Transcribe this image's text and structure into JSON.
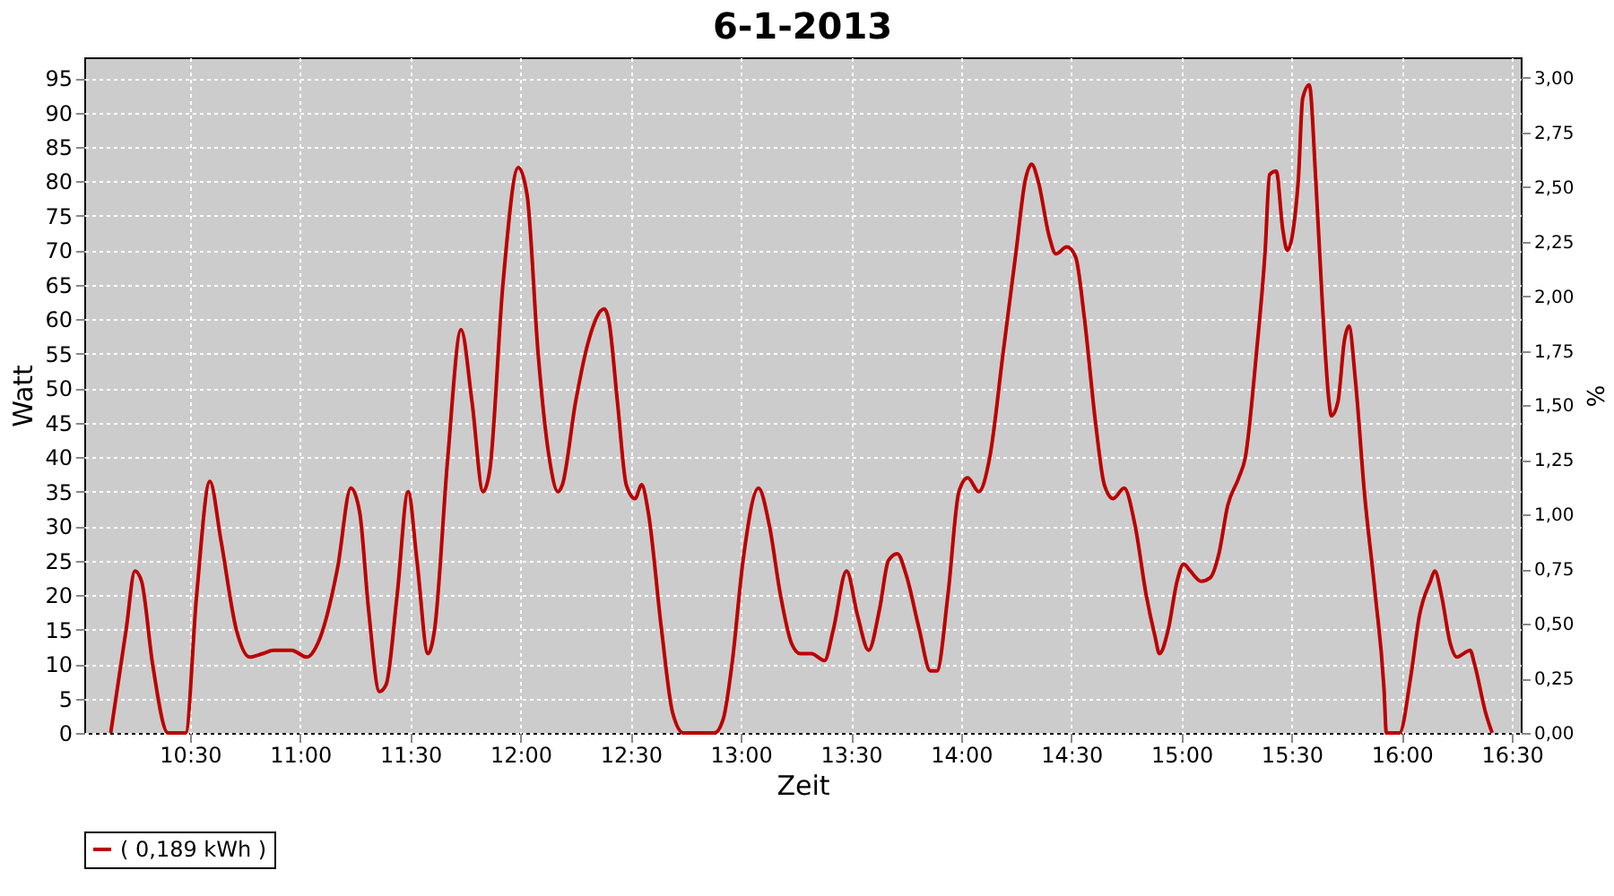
{
  "chart_data": {
    "type": "line",
    "title": "6-1-2013",
    "xlabel": "Zeit",
    "ylabel": "Watt",
    "y2label": "%",
    "xlim": [
      10.02,
      16.54
    ],
    "xticks": [
      {
        "value": 10.5,
        "label": "10:30"
      },
      {
        "value": 11,
        "label": "11:00"
      },
      {
        "value": 11.5,
        "label": "11:30"
      },
      {
        "value": 12,
        "label": "12:00"
      },
      {
        "value": 12.5,
        "label": "12:30"
      },
      {
        "value": 13,
        "label": "13:00"
      },
      {
        "value": 13.5,
        "label": "13:30"
      },
      {
        "value": 14,
        "label": "14:00"
      },
      {
        "value": 14.5,
        "label": "14:30"
      },
      {
        "value": 15,
        "label": "15:00"
      },
      {
        "value": 15.5,
        "label": "15:30"
      },
      {
        "value": 16,
        "label": "16:00"
      },
      {
        "value": 16.5,
        "label": "16:30"
      }
    ],
    "ylim": [
      0,
      98
    ],
    "yticks": [
      0,
      5,
      10,
      15,
      20,
      25,
      30,
      35,
      40,
      45,
      50,
      55,
      60,
      65,
      70,
      75,
      80,
      85,
      90,
      95
    ],
    "y2lim": [
      0,
      3.094
    ],
    "y2ticks": [
      {
        "value": 0,
        "label": "0,00"
      },
      {
        "value": 0.25,
        "label": "0,25"
      },
      {
        "value": 0.5,
        "label": "0,50"
      },
      {
        "value": 0.75,
        "label": "0,75"
      },
      {
        "value": 1,
        "label": "1,00"
      },
      {
        "value": 1.25,
        "label": "1,25"
      },
      {
        "value": 1.5,
        "label": "1,50"
      },
      {
        "value": 1.75,
        "label": "1,75"
      },
      {
        "value": 2,
        "label": "2,00"
      },
      {
        "value": 2.25,
        "label": "2,25"
      },
      {
        "value": 2.5,
        "label": "2,50"
      },
      {
        "value": 2.75,
        "label": "2,75"
      },
      {
        "value": 3,
        "label": "3,00"
      }
    ],
    "grid": true,
    "legend": "bottom",
    "series": [
      {
        "name": "( 0,189 kWh )",
        "color": "#bb0000",
        "x": [
          10.14,
          10.21,
          10.25,
          10.28,
          10.33,
          10.4,
          10.48,
          10.53,
          10.59,
          10.64,
          10.71,
          10.77,
          10.83,
          10.88,
          10.96,
          11.03,
          11.08,
          11.17,
          11.23,
          11.27,
          11.31,
          11.36,
          11.39,
          11.44,
          11.49,
          11.53,
          11.58,
          11.61,
          11.67,
          11.73,
          11.78,
          11.83,
          11.86,
          11.92,
          11.99,
          12.03,
          12.08,
          12.13,
          12.17,
          12.19,
          12.25,
          12.31,
          12.38,
          12.4,
          12.44,
          12.48,
          12.52,
          12.55,
          12.58,
          12.64,
          12.69,
          12.74,
          12.88,
          12.92,
          12.96,
          13.01,
          13.08,
          13.13,
          13.18,
          13.23,
          13.27,
          13.32,
          13.38,
          13.42,
          13.48,
          13.53,
          13.58,
          13.63,
          13.67,
          13.71,
          13.75,
          13.81,
          13.86,
          13.89,
          13.94,
          13.99,
          14.03,
          14.08,
          14.13,
          14.19,
          14.25,
          14.29,
          14.32,
          14.35,
          14.4,
          14.43,
          14.48,
          14.52,
          14.56,
          14.61,
          14.65,
          14.69,
          14.74,
          14.79,
          14.84,
          14.88,
          14.9,
          14.94,
          14.98,
          15.01,
          15.04,
          15.09,
          15.13,
          15.17,
          15.21,
          15.26,
          15.29,
          15.34,
          15.38,
          15.4,
          15.43,
          15.46,
          15.48,
          15.53,
          15.55,
          15.58,
          15.61,
          15.64,
          15.67,
          15.68,
          15.71,
          15.74,
          15.76,
          15.79,
          15.83,
          15.88,
          15.92,
          15.93,
          15.99,
          16.04,
          16.08,
          16.13,
          16.15,
          16.18,
          16.22,
          16.25,
          16.28,
          16.31,
          16.33,
          16.38,
          16.41
        ],
        "values": [
          0,
          15,
          23.5,
          22,
          10,
          0,
          0,
          20,
          36.5,
          28,
          15,
          11,
          11.5,
          12,
          12,
          11,
          13,
          24,
          35.5,
          32,
          18,
          6,
          7,
          20,
          35,
          25,
          11.5,
          15,
          40,
          58.5,
          48,
          35,
          38,
          65,
          82,
          78,
          55,
          40,
          35,
          36,
          48,
          57,
          61.5,
          60,
          48,
          36,
          34,
          36,
          32,
          15,
          3,
          0,
          0,
          2,
          10,
          25,
          35.5,
          30,
          20,
          13,
          11.5,
          11.5,
          10.5,
          15,
          23.5,
          17,
          12,
          18,
          25,
          26,
          23,
          15,
          9,
          9,
          20,
          35,
          37,
          35,
          40,
          55,
          70,
          80,
          82.5,
          80,
          72,
          69.5,
          70.5,
          69,
          60,
          45,
          36,
          34,
          35.5,
          30,
          20,
          14,
          11.5,
          15,
          22,
          24.5,
          23.5,
          22,
          22.5,
          26,
          33,
          37,
          40,
          55,
          70,
          81,
          81.5,
          73,
          70,
          80,
          92,
          94,
          80,
          62,
          48,
          46,
          48,
          57,
          59,
          51,
          35,
          20,
          6,
          0,
          0,
          8,
          17,
          22,
          23.5,
          20,
          13,
          11,
          11.5,
          12,
          10,
          3,
          0
        ]
      }
    ]
  }
}
